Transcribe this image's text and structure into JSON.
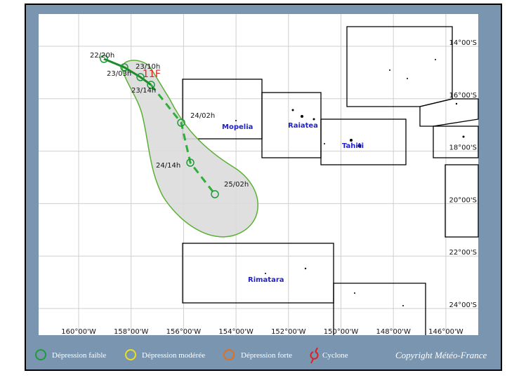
{
  "map": {
    "storm_name": "11F",
    "track_labels": [
      "22/20h",
      "23/03h",
      "23/10h",
      "23/14h",
      "24/02h",
      "24/14h",
      "25/02h"
    ],
    "place_names": [
      "Mopelia",
      "Raiatea",
      "Tahiti",
      "Rimatara"
    ],
    "longitude_labels": [
      "160°00'W",
      "158°00'W",
      "156°00'W",
      "154°00'W",
      "152°00'W",
      "150°00'W",
      "148°00'W",
      "146°00'W"
    ],
    "latitude_labels": [
      "14°00'S",
      "16°00'S",
      "18°00'S",
      "20°00'S",
      "22°00'S",
      "24°00'S"
    ]
  },
  "legend": [
    "Dépression faible",
    "Dépression modérée",
    "Dépression forte",
    "Cyclone"
  ],
  "copyright": "Copyright Météo-France"
}
